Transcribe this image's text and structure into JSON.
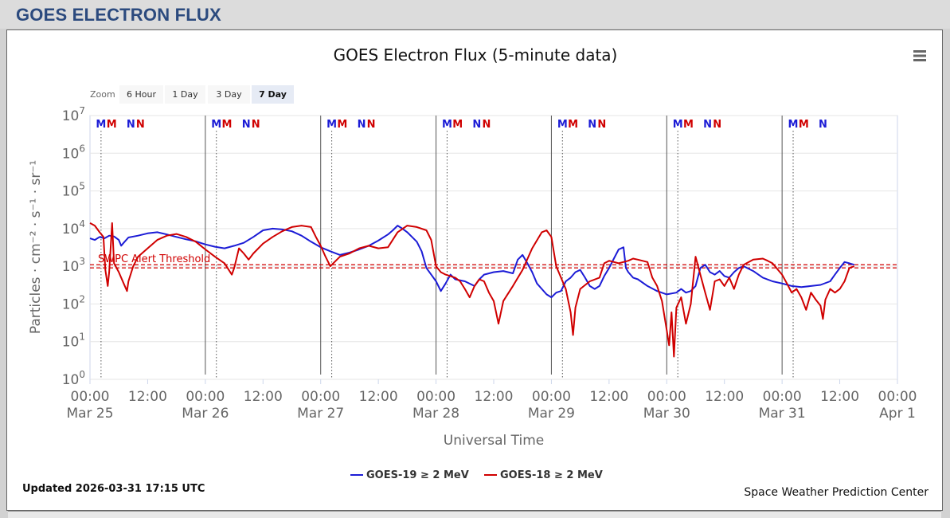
{
  "header": {
    "title": "GOES ELECTRON FLUX"
  },
  "footer": {
    "updated": "Updated 2026-03-31 17:15 UTC",
    "credit": "Space Weather Prediction Center"
  },
  "zoom": {
    "label": "Zoom",
    "buttons": [
      "6 Hour",
      "1 Day",
      "3 Day",
      "7 Day"
    ],
    "active": "7 Day"
  },
  "chart_data": {
    "type": "line",
    "title": "GOES Electron Flux (5-minute data)",
    "xlabel": "Universal Time",
    "ylabel": "Particles · cm⁻² · s⁻¹ · sr⁻¹",
    "y_scale": "log",
    "ylim": [
      1,
      10000000
    ],
    "y_ticks": [
      {
        "value": 1,
        "base": "10",
        "exp": "0"
      },
      {
        "value": 10,
        "base": "10",
        "exp": "1"
      },
      {
        "value": 100,
        "base": "10",
        "exp": "2"
      },
      {
        "value": 1000,
        "base": "10",
        "exp": "3"
      },
      {
        "value": 10000,
        "base": "10",
        "exp": "4"
      },
      {
        "value": 100000,
        "base": "10",
        "exp": "5"
      },
      {
        "value": 1000000,
        "base": "10",
        "exp": "6"
      },
      {
        "value": 10000000,
        "base": "10",
        "exp": "7"
      }
    ],
    "x_unit": "hours since 2026-03-25 00:00 UTC",
    "xlim": [
      0,
      168
    ],
    "x_ticks": [
      {
        "hour": 0,
        "time": "00:00",
        "date": "Mar 25"
      },
      {
        "hour": 12,
        "time": "12:00",
        "date": ""
      },
      {
        "hour": 24,
        "time": "00:00",
        "date": "Mar 26"
      },
      {
        "hour": 36,
        "time": "12:00",
        "date": ""
      },
      {
        "hour": 48,
        "time": "00:00",
        "date": "Mar 27"
      },
      {
        "hour": 60,
        "time": "12:00",
        "date": ""
      },
      {
        "hour": 72,
        "time": "00:00",
        "date": "Mar 28"
      },
      {
        "hour": 84,
        "time": "12:00",
        "date": ""
      },
      {
        "hour": 96,
        "time": "00:00",
        "date": "Mar 29"
      },
      {
        "hour": 108,
        "time": "12:00",
        "date": ""
      },
      {
        "hour": 120,
        "time": "00:00",
        "date": "Mar 30"
      },
      {
        "hour": 132,
        "time": "12:00",
        "date": ""
      },
      {
        "hour": 144,
        "time": "00:00",
        "date": "Mar 31"
      },
      {
        "hour": 156,
        "time": "12:00",
        "date": ""
      },
      {
        "hour": 168,
        "time": "00:00",
        "date": "Apr 1"
      }
    ],
    "day_lines": [
      24,
      48,
      72,
      96,
      120,
      144
    ],
    "threshold": {
      "value": 1000,
      "label": "SWPC Alert Threshold",
      "color": "#d00000"
    },
    "markers": [
      {
        "hour": 2.3,
        "label": "M",
        "color": "#1c1cd6"
      },
      {
        "hour": 4.5,
        "label": "M",
        "color": "#d00000"
      },
      {
        "hour": 8.5,
        "label": "N",
        "color": "#1c1cd6"
      },
      {
        "hour": 10.5,
        "label": "N",
        "color": "#d00000"
      },
      {
        "hour": 26.3,
        "label": "M",
        "color": "#1c1cd6"
      },
      {
        "hour": 28.5,
        "label": "M",
        "color": "#d00000"
      },
      {
        "hour": 32.5,
        "label": "N",
        "color": "#1c1cd6"
      },
      {
        "hour": 34.5,
        "label": "N",
        "color": "#d00000"
      },
      {
        "hour": 50.3,
        "label": "M",
        "color": "#1c1cd6"
      },
      {
        "hour": 52.5,
        "label": "M",
        "color": "#d00000"
      },
      {
        "hour": 56.5,
        "label": "N",
        "color": "#1c1cd6"
      },
      {
        "hour": 58.5,
        "label": "N",
        "color": "#d00000"
      },
      {
        "hour": 74.3,
        "label": "M",
        "color": "#1c1cd6"
      },
      {
        "hour": 76.5,
        "label": "M",
        "color": "#d00000"
      },
      {
        "hour": 80.5,
        "label": "N",
        "color": "#1c1cd6"
      },
      {
        "hour": 82.5,
        "label": "N",
        "color": "#d00000"
      },
      {
        "hour": 98.3,
        "label": "M",
        "color": "#1c1cd6"
      },
      {
        "hour": 100.5,
        "label": "M",
        "color": "#d00000"
      },
      {
        "hour": 104.5,
        "label": "N",
        "color": "#1c1cd6"
      },
      {
        "hour": 106.5,
        "label": "N",
        "color": "#d00000"
      },
      {
        "hour": 122.3,
        "label": "M",
        "color": "#1c1cd6"
      },
      {
        "hour": 124.5,
        "label": "M",
        "color": "#d00000"
      },
      {
        "hour": 128.5,
        "label": "N",
        "color": "#1c1cd6"
      },
      {
        "hour": 130.5,
        "label": "N",
        "color": "#d00000"
      },
      {
        "hour": 146.3,
        "label": "M",
        "color": "#1c1cd6"
      },
      {
        "hour": 148.5,
        "label": "M",
        "color": "#d00000"
      },
      {
        "hour": 152.5,
        "label": "N",
        "color": "#1c1cd6"
      }
    ],
    "series": [
      {
        "name": "GOES-19 ≥ 2 MeV",
        "color": "#1c1cd6",
        "points": [
          [
            0,
            5500
          ],
          [
            1,
            5000
          ],
          [
            2,
            6000
          ],
          [
            3,
            5500
          ],
          [
            4,
            6500
          ],
          [
            5,
            6200
          ],
          [
            6,
            5000
          ],
          [
            6.5,
            3500
          ],
          [
            7,
            4200
          ],
          [
            8,
            5800
          ],
          [
            10,
            6500
          ],
          [
            12,
            7500
          ],
          [
            14,
            8000
          ],
          [
            16,
            7000
          ],
          [
            18,
            6000
          ],
          [
            20,
            5200
          ],
          [
            22,
            4600
          ],
          [
            24,
            3800
          ],
          [
            26,
            3300
          ],
          [
            28,
            3000
          ],
          [
            30,
            3500
          ],
          [
            32,
            4200
          ],
          [
            34,
            6000
          ],
          [
            36,
            9000
          ],
          [
            38,
            10000
          ],
          [
            40,
            9500
          ],
          [
            42,
            8500
          ],
          [
            44,
            6500
          ],
          [
            46,
            4500
          ],
          [
            48,
            3200
          ],
          [
            50,
            2500
          ],
          [
            52,
            2000
          ],
          [
            54,
            2300
          ],
          [
            56,
            2800
          ],
          [
            58,
            3500
          ],
          [
            60,
            4800
          ],
          [
            62,
            7000
          ],
          [
            63,
            9000
          ],
          [
            64,
            12000
          ],
          [
            65,
            10000
          ],
          [
            66,
            8000
          ],
          [
            67,
            6000
          ],
          [
            68,
            4500
          ],
          [
            69,
            2500
          ],
          [
            70,
            900
          ],
          [
            71,
            600
          ],
          [
            72,
            400
          ],
          [
            73,
            220
          ],
          [
            74,
            350
          ],
          [
            75,
            600
          ],
          [
            76,
            450
          ],
          [
            78,
            400
          ],
          [
            80,
            300
          ],
          [
            81,
            450
          ],
          [
            82,
            600
          ],
          [
            84,
            700
          ],
          [
            86,
            750
          ],
          [
            88,
            650
          ],
          [
            89,
            1500
          ],
          [
            90,
            2000
          ],
          [
            91,
            1200
          ],
          [
            92,
            700
          ],
          [
            93,
            350
          ],
          [
            94,
            250
          ],
          [
            95,
            180
          ],
          [
            96,
            150
          ],
          [
            97,
            200
          ],
          [
            98,
            220
          ],
          [
            99,
            400
          ],
          [
            100,
            500
          ],
          [
            101,
            700
          ],
          [
            102,
            800
          ],
          [
            103,
            500
          ],
          [
            104,
            300
          ],
          [
            105,
            250
          ],
          [
            106,
            300
          ],
          [
            107,
            550
          ],
          [
            108,
            900
          ],
          [
            109,
            1600
          ],
          [
            110,
            2800
          ],
          [
            111,
            3200
          ],
          [
            111.5,
            900
          ],
          [
            112,
            700
          ],
          [
            113,
            500
          ],
          [
            114,
            450
          ],
          [
            116,
            300
          ],
          [
            118,
            220
          ],
          [
            120,
            180
          ],
          [
            122,
            200
          ],
          [
            123,
            250
          ],
          [
            124,
            200
          ],
          [
            125,
            220
          ],
          [
            126,
            300
          ],
          [
            127,
            900
          ],
          [
            128,
            1100
          ],
          [
            129,
            700
          ],
          [
            130,
            600
          ],
          [
            131,
            750
          ],
          [
            132,
            550
          ],
          [
            133,
            500
          ],
          [
            134,
            700
          ],
          [
            135,
            900
          ],
          [
            136,
            1000
          ],
          [
            138,
            750
          ],
          [
            140,
            500
          ],
          [
            142,
            400
          ],
          [
            144,
            350
          ],
          [
            146,
            300
          ],
          [
            148,
            280
          ],
          [
            150,
            300
          ],
          [
            152,
            320
          ],
          [
            154,
            400
          ],
          [
            155,
            600
          ],
          [
            156,
            900
          ],
          [
            157,
            1300
          ],
          [
            158,
            1200
          ],
          [
            159,
            1100
          ]
        ]
      },
      {
        "name": "GOES-18 ≥ 2 MeV",
        "color": "#d00000",
        "points": [
          [
            0,
            14000
          ],
          [
            1,
            12000
          ],
          [
            2,
            8000
          ],
          [
            2.8,
            6000
          ],
          [
            3.2,
            800
          ],
          [
            3.7,
            300
          ],
          [
            4,
            700
          ],
          [
            4.6,
            14000
          ],
          [
            5,
            1200
          ],
          [
            6,
            700
          ],
          [
            7,
            350
          ],
          [
            7.7,
            220
          ],
          [
            8,
            400
          ],
          [
            9,
            1000
          ],
          [
            10,
            1800
          ],
          [
            12,
            3000
          ],
          [
            14,
            5000
          ],
          [
            16,
            6500
          ],
          [
            18,
            7200
          ],
          [
            20,
            6000
          ],
          [
            22,
            4500
          ],
          [
            24,
            2800
          ],
          [
            26,
            1800
          ],
          [
            28,
            1200
          ],
          [
            29.5,
            600
          ],
          [
            30,
            900
          ],
          [
            31,
            3000
          ],
          [
            32,
            2200
          ],
          [
            33,
            1500
          ],
          [
            34,
            2200
          ],
          [
            36,
            4000
          ],
          [
            38,
            6000
          ],
          [
            40,
            8500
          ],
          [
            42,
            11000
          ],
          [
            44,
            12000
          ],
          [
            46,
            11000
          ],
          [
            47,
            6000
          ],
          [
            48,
            3500
          ],
          [
            49,
            1800
          ],
          [
            50,
            1000
          ],
          [
            52,
            1800
          ],
          [
            54,
            2200
          ],
          [
            56,
            3000
          ],
          [
            58,
            3500
          ],
          [
            60,
            3000
          ],
          [
            62,
            3200
          ],
          [
            64,
            8000
          ],
          [
            66,
            12000
          ],
          [
            68,
            11000
          ],
          [
            70,
            9000
          ],
          [
            71,
            5000
          ],
          [
            72,
            1000
          ],
          [
            73,
            700
          ],
          [
            74,
            600
          ],
          [
            76,
            500
          ],
          [
            77,
            400
          ],
          [
            78,
            250
          ],
          [
            79,
            150
          ],
          [
            80,
            300
          ],
          [
            81,
            450
          ],
          [
            82,
            400
          ],
          [
            83,
            200
          ],
          [
            84,
            120
          ],
          [
            85,
            30
          ],
          [
            86,
            120
          ],
          [
            88,
            300
          ],
          [
            90,
            800
          ],
          [
            92,
            3000
          ],
          [
            94,
            8000
          ],
          [
            95,
            9000
          ],
          [
            96,
            6000
          ],
          [
            97,
            1000
          ],
          [
            98,
            500
          ],
          [
            99,
            250
          ],
          [
            100,
            60
          ],
          [
            100.5,
            15
          ],
          [
            101,
            80
          ],
          [
            102,
            250
          ],
          [
            104,
            400
          ],
          [
            106,
            500
          ],
          [
            107,
            1200
          ],
          [
            108,
            1400
          ],
          [
            110,
            1200
          ],
          [
            112,
            1400
          ],
          [
            113,
            1600
          ],
          [
            114,
            1500
          ],
          [
            116,
            1300
          ],
          [
            117,
            500
          ],
          [
            118,
            300
          ],
          [
            119,
            120
          ],
          [
            120,
            20
          ],
          [
            120.5,
            8
          ],
          [
            121,
            60
          ],
          [
            121.5,
            4
          ],
          [
            122,
            80
          ],
          [
            123,
            150
          ],
          [
            124,
            30
          ],
          [
            125,
            100
          ],
          [
            126,
            1800
          ],
          [
            127,
            600
          ],
          [
            128,
            200
          ],
          [
            129,
            70
          ],
          [
            130,
            400
          ],
          [
            131,
            450
          ],
          [
            132,
            300
          ],
          [
            133,
            500
          ],
          [
            134,
            250
          ],
          [
            135,
            600
          ],
          [
            136,
            1100
          ],
          [
            138,
            1500
          ],
          [
            140,
            1600
          ],
          [
            141,
            1400
          ],
          [
            142,
            1200
          ],
          [
            144,
            600
          ],
          [
            145,
            350
          ],
          [
            146,
            200
          ],
          [
            147,
            250
          ],
          [
            148,
            150
          ],
          [
            149,
            70
          ],
          [
            150,
            200
          ],
          [
            151,
            130
          ],
          [
            152,
            90
          ],
          [
            152.5,
            40
          ],
          [
            153,
            130
          ],
          [
            154,
            250
          ],
          [
            155,
            200
          ],
          [
            156,
            250
          ],
          [
            157,
            400
          ],
          [
            158,
            900
          ],
          [
            159,
            1000
          ]
        ]
      }
    ]
  }
}
